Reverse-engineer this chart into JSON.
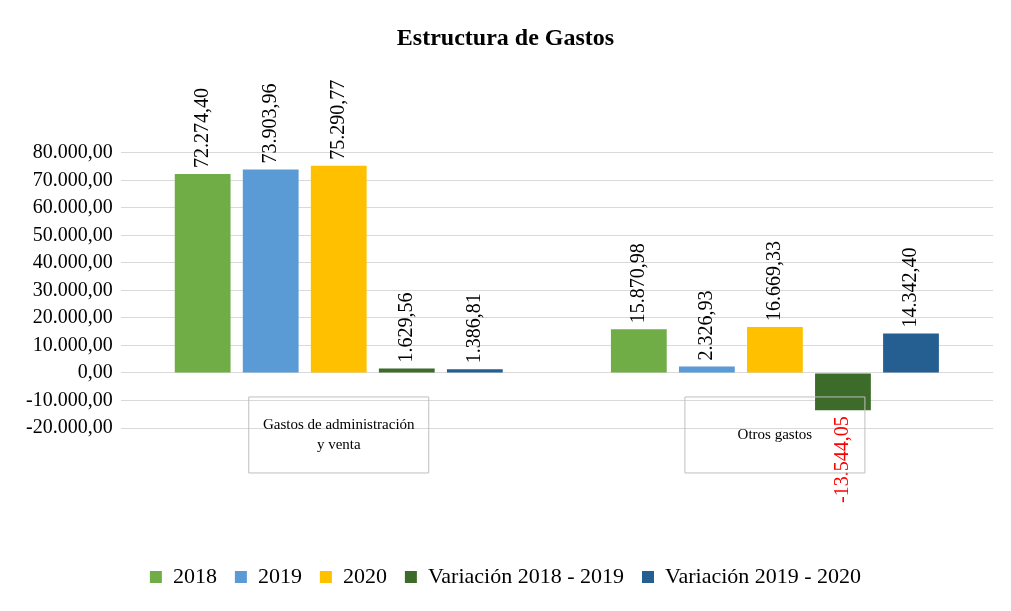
{
  "chart_data": {
    "type": "bar",
    "title": "Estructura de Gastos",
    "categories": [
      "Gastos de administración y venta",
      "Otros gastos"
    ],
    "series": [
      {
        "name": "2018",
        "color": "#70ad47",
        "values": [
          72274.4,
          15870.98
        ],
        "value_labels": [
          "72.274,40",
          "15.870,98"
        ]
      },
      {
        "name": "2019",
        "color": "#5b9bd5",
        "values": [
          73903.96,
          2326.93
        ],
        "value_labels": [
          "73.903,96",
          "2.326,93"
        ]
      },
      {
        "name": "2020",
        "color": "#ffc000",
        "values": [
          75290.77,
          16669.33
        ],
        "value_labels": [
          "75.290,77",
          "16.669,33"
        ]
      },
      {
        "name": "Variación 2018 - 2019",
        "color": "#3d6b2a",
        "values": [
          1629.56,
          -13544.05
        ],
        "value_labels": [
          "1.629,56",
          "-13.544,05"
        ]
      },
      {
        "name": "Variación 2019 - 2020",
        "color": "#255e91",
        "values": [
          1386.81,
          14342.4
        ],
        "value_labels": [
          "1.386,81",
          "14.342,40"
        ]
      }
    ],
    "ylim": [
      -20000,
      80000
    ],
    "yticks": [
      {
        "value": -20000,
        "label": "-20.000,00"
      },
      {
        "value": -10000,
        "label": "-10.000,00"
      },
      {
        "value": 0,
        "label": "0,00"
      },
      {
        "value": 10000,
        "label": "10.000,00"
      },
      {
        "value": 20000,
        "label": "20.000,00"
      },
      {
        "value": 30000,
        "label": "30.000,00"
      },
      {
        "value": 40000,
        "label": "40.000,00"
      },
      {
        "value": 50000,
        "label": "50.000,00"
      },
      {
        "value": 60000,
        "label": "60.000,00"
      },
      {
        "value": 70000,
        "label": "70.000,00"
      },
      {
        "value": 80000,
        "label": "80.000,00"
      }
    ],
    "grid": "y",
    "legend": "bottom"
  }
}
